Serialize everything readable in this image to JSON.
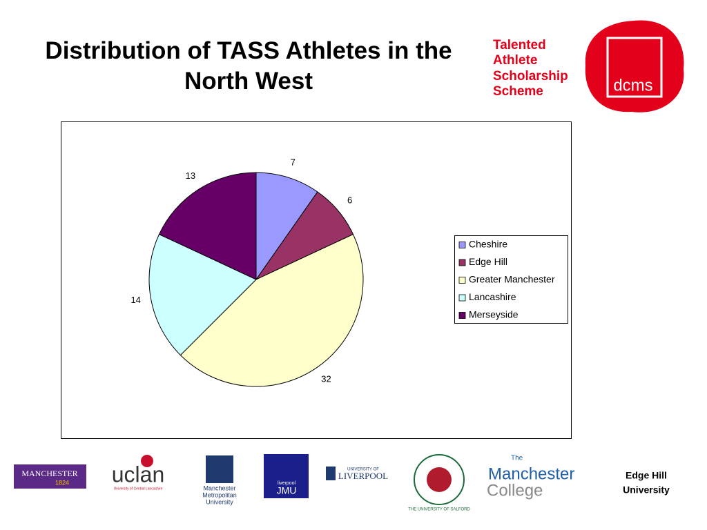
{
  "chart_data": {
    "type": "pie",
    "title": "Distribution of TASS Athletes in the North West",
    "categories": [
      "Cheshire",
      "Edge Hill",
      "Greater Manchester",
      "Lancashire",
      "Merseyside"
    ],
    "values": [
      7,
      6,
      32,
      14,
      13
    ],
    "colors": [
      "#9999ff",
      "#993366",
      "#ffffcc",
      "#ccffff",
      "#660066"
    ],
    "legend": "right"
  },
  "branding": {
    "tass": [
      "Talented",
      "Athlete",
      "Scholarship",
      "Scheme"
    ],
    "dcms": "dcms"
  },
  "logos": {
    "manchester": [
      "MANCHESTER",
      "1824"
    ],
    "uclan": [
      "uclan",
      "University of Central Lancashire"
    ],
    "mmu": [
      "Manchester",
      "Metropolitan",
      "University"
    ],
    "jmu": [
      "liverpool",
      "JMU"
    ],
    "liverpool": [
      "UNIVERSITY OF",
      "LIVERPOOL"
    ],
    "salford": "THE UNIVERSITY OF SALFORD",
    "college": [
      "The",
      "Manchester",
      "College"
    ],
    "edgehill": [
      "Edge Hill",
      "University"
    ]
  }
}
